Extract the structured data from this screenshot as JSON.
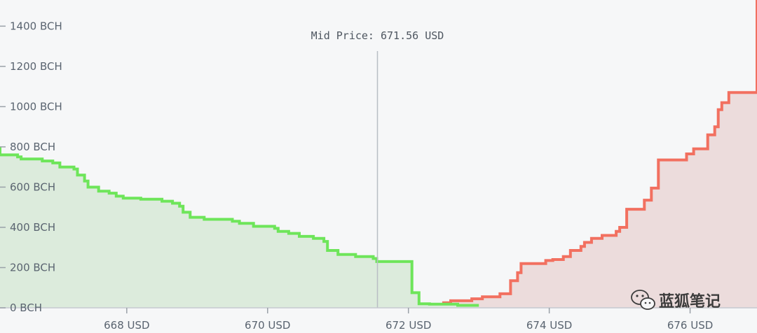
{
  "chart_data": {
    "type": "area",
    "subtype": "order-book-depth",
    "mid_price_label": "Mid Price: 671.56 USD",
    "mid_price": 671.56,
    "xlim": [
      666.2,
      676.95
    ],
    "ylim": [
      0,
      1530
    ],
    "x_ticks": [
      {
        "value": 668,
        "label": "668 USD"
      },
      {
        "value": 670,
        "label": "670 USD"
      },
      {
        "value": 672,
        "label": "672 USD"
      },
      {
        "value": 674,
        "label": "674 USD"
      },
      {
        "value": 676,
        "label": "676 USD"
      }
    ],
    "y_ticks": [
      {
        "value": 0,
        "label": "0 BCH"
      },
      {
        "value": 200,
        "label": "200 BCH"
      },
      {
        "value": 400,
        "label": "400 BCH"
      },
      {
        "value": 600,
        "label": "600 BCH"
      },
      {
        "value": 800,
        "label": "800 BCH"
      },
      {
        "value": 1000,
        "label": "1000 BCH"
      },
      {
        "value": 1200,
        "label": "1200 BCH"
      },
      {
        "value": 1400,
        "label": "1400 BCH"
      }
    ],
    "grid": false,
    "series": [
      {
        "side": "bids",
        "color": "#6ee55a",
        "fill": "#dcebdc",
        "points": [
          [
            666.2,
            800
          ],
          [
            666.2,
            760
          ],
          [
            666.45,
            760
          ],
          [
            666.45,
            750
          ],
          [
            666.5,
            750
          ],
          [
            666.5,
            740
          ],
          [
            666.8,
            740
          ],
          [
            666.8,
            730
          ],
          [
            666.95,
            730
          ],
          [
            666.95,
            720
          ],
          [
            667.05,
            720
          ],
          [
            667.05,
            700
          ],
          [
            667.25,
            700
          ],
          [
            667.25,
            690
          ],
          [
            667.3,
            690
          ],
          [
            667.3,
            660
          ],
          [
            667.4,
            660
          ],
          [
            667.4,
            630
          ],
          [
            667.45,
            630
          ],
          [
            667.45,
            600
          ],
          [
            667.6,
            600
          ],
          [
            667.6,
            580
          ],
          [
            667.75,
            580
          ],
          [
            667.75,
            570
          ],
          [
            667.85,
            570
          ],
          [
            667.85,
            555
          ],
          [
            667.95,
            555
          ],
          [
            667.95,
            545
          ],
          [
            668.2,
            545
          ],
          [
            668.2,
            540
          ],
          [
            668.5,
            540
          ],
          [
            668.5,
            530
          ],
          [
            668.65,
            530
          ],
          [
            668.65,
            520
          ],
          [
            668.75,
            520
          ],
          [
            668.75,
            505
          ],
          [
            668.8,
            505
          ],
          [
            668.8,
            475
          ],
          [
            668.9,
            475
          ],
          [
            668.9,
            450
          ],
          [
            669.1,
            450
          ],
          [
            669.1,
            440
          ],
          [
            669.5,
            440
          ],
          [
            669.5,
            430
          ],
          [
            669.6,
            430
          ],
          [
            669.6,
            420
          ],
          [
            669.8,
            420
          ],
          [
            669.8,
            405
          ],
          [
            670.1,
            405
          ],
          [
            670.1,
            395
          ],
          [
            670.15,
            395
          ],
          [
            670.15,
            380
          ],
          [
            670.3,
            380
          ],
          [
            670.3,
            370
          ],
          [
            670.45,
            370
          ],
          [
            670.45,
            355
          ],
          [
            670.65,
            355
          ],
          [
            670.65,
            345
          ],
          [
            670.8,
            345
          ],
          [
            670.8,
            330
          ],
          [
            670.85,
            330
          ],
          [
            670.85,
            285
          ],
          [
            671.0,
            285
          ],
          [
            671.0,
            265
          ],
          [
            671.25,
            265
          ],
          [
            671.25,
            255
          ],
          [
            671.5,
            255
          ],
          [
            671.5,
            245
          ],
          [
            671.55,
            245
          ],
          [
            671.55,
            230
          ],
          [
            672.05,
            230
          ],
          [
            672.05,
            75
          ],
          [
            672.15,
            75
          ],
          [
            672.15,
            20
          ],
          [
            672.3,
            20
          ],
          [
            672.3,
            18
          ],
          [
            672.7,
            18
          ],
          [
            672.7,
            12
          ],
          [
            673.0,
            12
          ]
        ]
      },
      {
        "side": "asks",
        "color": "#f27060",
        "fill": "#ecdcdc",
        "points": [
          [
            671.62,
            0
          ],
          [
            671.62,
            5
          ],
          [
            672.05,
            5
          ],
          [
            672.05,
            10
          ],
          [
            672.3,
            10
          ],
          [
            672.3,
            15
          ],
          [
            672.5,
            15
          ],
          [
            672.5,
            25
          ],
          [
            672.6,
            25
          ],
          [
            672.6,
            35
          ],
          [
            672.9,
            35
          ],
          [
            672.9,
            45
          ],
          [
            673.05,
            45
          ],
          [
            673.05,
            55
          ],
          [
            673.3,
            55
          ],
          [
            673.3,
            70
          ],
          [
            673.45,
            70
          ],
          [
            673.45,
            135
          ],
          [
            673.55,
            135
          ],
          [
            673.55,
            175
          ],
          [
            673.6,
            175
          ],
          [
            673.6,
            220
          ],
          [
            673.95,
            220
          ],
          [
            673.95,
            235
          ],
          [
            674.05,
            235
          ],
          [
            674.05,
            240
          ],
          [
            674.2,
            240
          ],
          [
            674.2,
            255
          ],
          [
            674.3,
            255
          ],
          [
            674.3,
            285
          ],
          [
            674.45,
            285
          ],
          [
            674.45,
            305
          ],
          [
            674.5,
            305
          ],
          [
            674.5,
            325
          ],
          [
            674.6,
            325
          ],
          [
            674.6,
            345
          ],
          [
            674.75,
            345
          ],
          [
            674.75,
            360
          ],
          [
            674.95,
            360
          ],
          [
            674.95,
            380
          ],
          [
            675.0,
            380
          ],
          [
            675.0,
            400
          ],
          [
            675.1,
            400
          ],
          [
            675.1,
            490
          ],
          [
            675.35,
            490
          ],
          [
            675.35,
            535
          ],
          [
            675.45,
            535
          ],
          [
            675.45,
            595
          ],
          [
            675.55,
            595
          ],
          [
            675.55,
            735
          ],
          [
            675.95,
            735
          ],
          [
            675.95,
            765
          ],
          [
            676.05,
            765
          ],
          [
            676.05,
            790
          ],
          [
            676.25,
            790
          ],
          [
            676.25,
            860
          ],
          [
            676.35,
            860
          ],
          [
            676.35,
            900
          ],
          [
            676.4,
            900
          ],
          [
            676.4,
            985
          ],
          [
            676.45,
            985
          ],
          [
            676.45,
            1020
          ],
          [
            676.55,
            1020
          ],
          [
            676.55,
            1070
          ],
          [
            676.95,
            1070
          ],
          [
            676.95,
            1170
          ],
          [
            677.15,
            1170
          ],
          [
            677.15,
            1530
          ],
          [
            677.4,
            1530
          ]
        ]
      }
    ]
  },
  "watermark": {
    "text": "蓝狐笔记",
    "icon": "wechat-icon"
  }
}
